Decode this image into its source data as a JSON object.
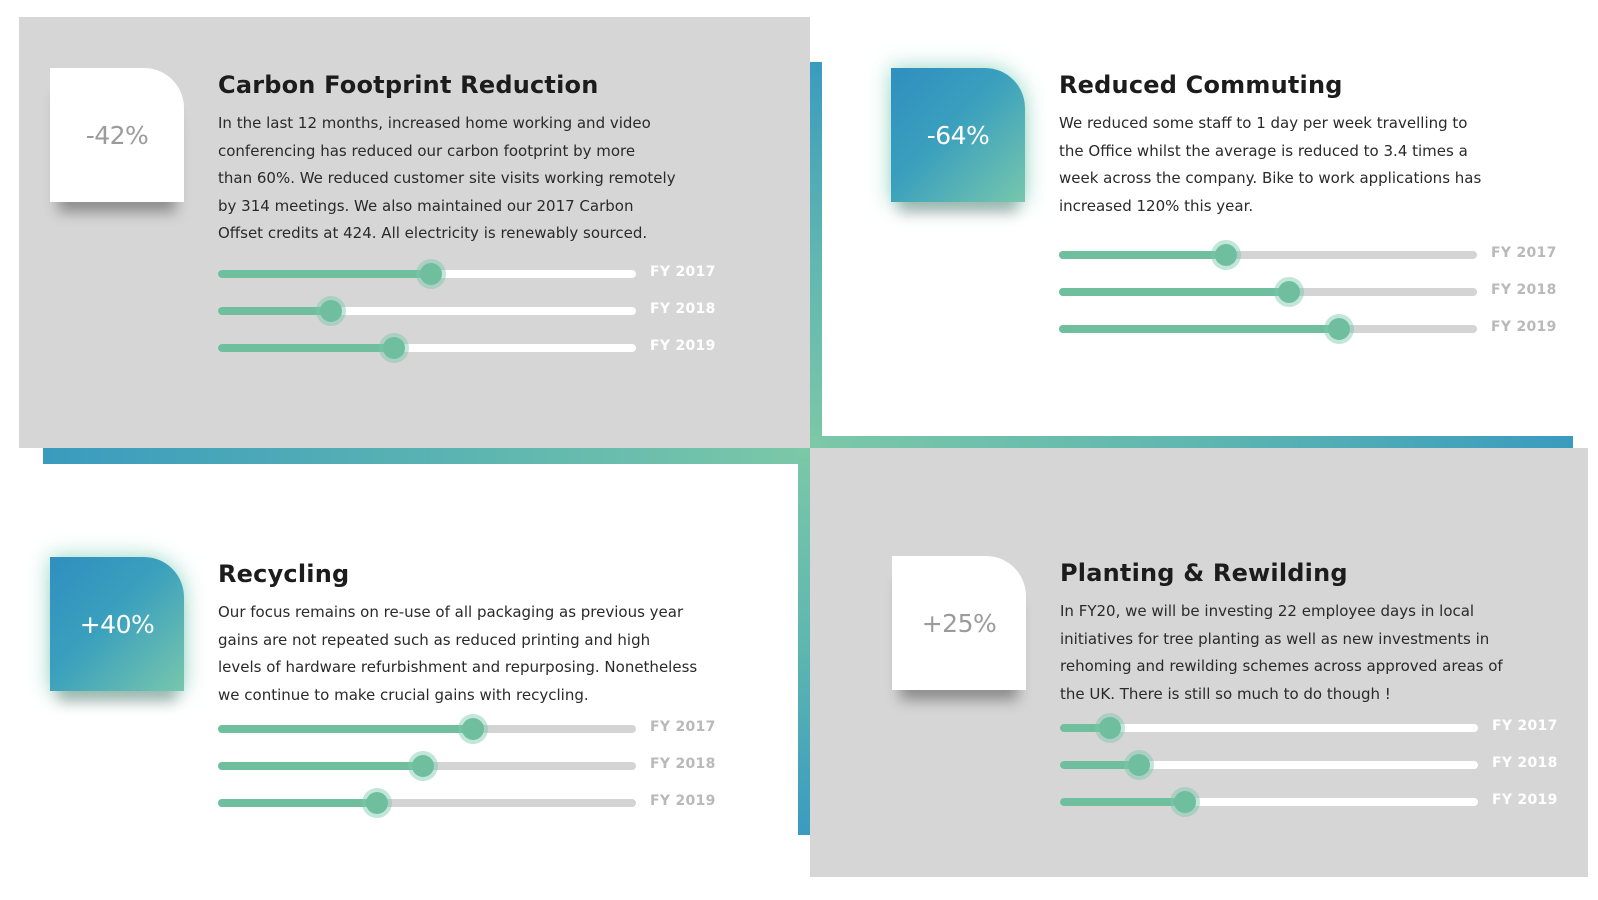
{
  "colors": {
    "panel_gray": "#d6d6d6",
    "accent_teal": "#3a9bbf",
    "accent_green": "#6fbf9f",
    "title_text": "#1c1c1c"
  },
  "cards": [
    {
      "id": "carbon",
      "badge": "-42%",
      "title": "Carbon Footprint Reduction",
      "body": "In the last 12 months, increased home working and video\nconferencing has reduced our carbon footprint by more\nthan 60%. We reduced customer site visits working remotely\nby 314 meetings. We also maintained our 2017 Carbon\nOffset credits at 424. All electricity is renewably sourced.",
      "sliders": [
        {
          "label": "FY 2017",
          "value": 0.51
        },
        {
          "label": "FY 2018",
          "value": 0.27
        },
        {
          "label": "FY 2019",
          "value": 0.42
        }
      ]
    },
    {
      "id": "commuting",
      "badge": "-64%",
      "title": "Reduced Commuting",
      "body": "We reduced some staff to 1 day per week travelling to\nthe Office whilst the average is reduced to 3.4 times a\nweek across the company. Bike to work applications has\nincreased 120% this year.",
      "sliders": [
        {
          "label": "FY 2017",
          "value": 0.4
        },
        {
          "label": "FY 2018",
          "value": 0.55
        },
        {
          "label": "FY 2019",
          "value": 0.67
        }
      ]
    },
    {
      "id": "recycling",
      "badge": "+40%",
      "title": "Recycling",
      "body": "Our focus remains on re-use of all packaging as previous year\ngains are not repeated such as reduced printing and high\nlevels of hardware refurbishment and repurposing. Nonetheless\nwe continue to make crucial gains with recycling.",
      "sliders": [
        {
          "label": "FY 2017",
          "value": 0.61
        },
        {
          "label": "FY 2018",
          "value": 0.49
        },
        {
          "label": "FY 2019",
          "value": 0.38
        }
      ]
    },
    {
      "id": "planting",
      "badge": "+25%",
      "title": "Planting & Rewilding",
      "body": "In FY20, we will be investing 22 employee days in local\ninitiatives for tree planting as well as new investments in\nrehoming and rewilding schemes across approved areas of\nthe UK. There is still so much to do though !",
      "sliders": [
        {
          "label": "FY 2017",
          "value": 0.12
        },
        {
          "label": "FY 2018",
          "value": 0.19
        },
        {
          "label": "FY 2019",
          "value": 0.3
        }
      ]
    }
  ]
}
